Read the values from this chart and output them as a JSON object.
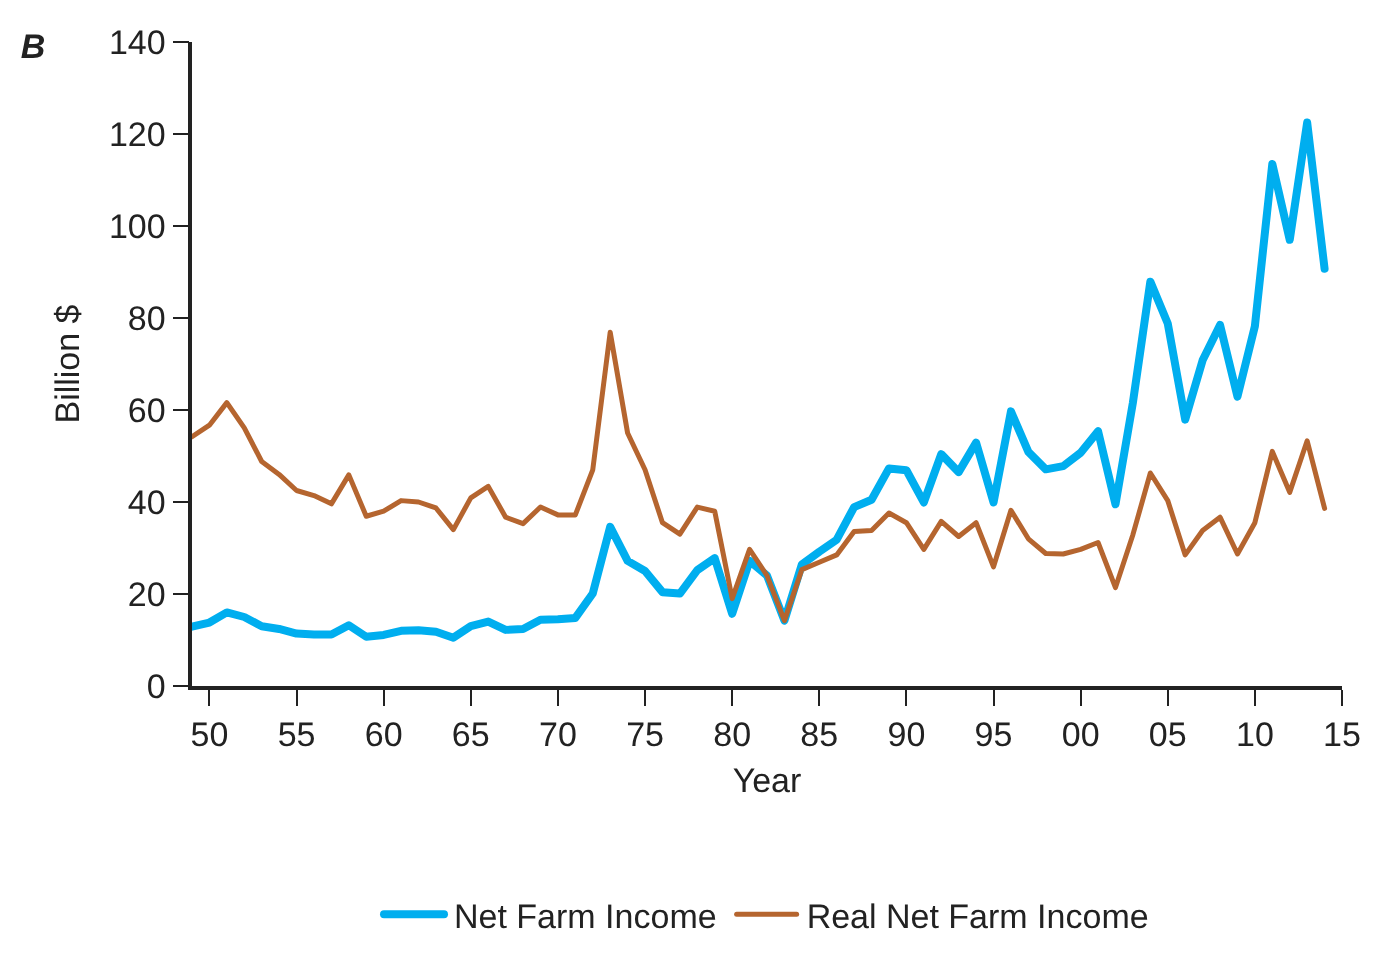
{
  "chart_data": {
    "type": "line",
    "title": "B",
    "xlabel": "Year",
    "ylabel": "Billion $",
    "x": [
      1949,
      1950,
      1951,
      1952,
      1953,
      1954,
      1955,
      1956,
      1957,
      1958,
      1959,
      1960,
      1961,
      1962,
      1963,
      1964,
      1965,
      1966,
      1967,
      1968,
      1969,
      1970,
      1971,
      1972,
      1973,
      1974,
      1975,
      1976,
      1977,
      1978,
      1979,
      1980,
      1981,
      1982,
      1983,
      1984,
      1985,
      1986,
      1987,
      1988,
      1989,
      1990,
      1991,
      1992,
      1993,
      1994,
      1995,
      1996,
      1997,
      1998,
      1999,
      2000,
      2001,
      2002,
      2003,
      2004,
      2005,
      2006,
      2007,
      2008,
      2009,
      2010,
      2011,
      2012,
      2013,
      2014
    ],
    "series": [
      {
        "name": "Net Farm Income",
        "color": "#00aeef",
        "values": [
          12.9,
          13.8,
          16.0,
          15.0,
          13.0,
          12.4,
          11.4,
          11.2,
          11.2,
          13.2,
          10.7,
          11.1,
          12.0,
          12.1,
          11.8,
          10.5,
          13.0,
          14.0,
          12.2,
          12.4,
          14.4,
          14.5,
          14.8,
          20.1,
          34.6,
          27.2,
          25.0,
          20.4,
          20.1,
          25.2,
          27.8,
          15.7,
          27.2,
          24.0,
          14.2,
          26.4,
          29.2,
          31.8,
          38.9,
          40.5,
          47.3,
          46.9,
          39.9,
          50.4,
          46.5,
          52.9,
          39.9,
          59.7,
          50.9,
          47.1,
          47.8,
          50.7,
          55.4,
          39.5,
          61.6,
          87.9,
          78.8,
          57.9,
          70.8,
          78.5,
          62.9,
          78.2,
          113.5,
          97.0,
          122.5,
          90.7
        ]
      },
      {
        "name": "Real Net Farm Income",
        "color": "#b5652f",
        "values": [
          54.2,
          56.7,
          61.6,
          56.1,
          48.8,
          46.0,
          42.5,
          41.4,
          39.6,
          45.9,
          36.9,
          38.0,
          40.3,
          40.0,
          38.7,
          34.0,
          40.9,
          43.4,
          36.7,
          35.3,
          38.9,
          37.2,
          37.2,
          47.0,
          76.9,
          55.0,
          47.0,
          35.5,
          33.0,
          38.9,
          38.0,
          19.0,
          29.7,
          24.0,
          14.2,
          25.3,
          26.9,
          28.5,
          33.6,
          33.8,
          37.6,
          35.5,
          29.7,
          35.8,
          32.5,
          35.5,
          25.9,
          38.2,
          32.0,
          28.8,
          28.7,
          29.7,
          31.2,
          21.4,
          32.9,
          46.3,
          40.3,
          28.5,
          33.8,
          36.7,
          28.7,
          35.5,
          51.0,
          42.1,
          53.3,
          38.6
        ]
      }
    ],
    "xlim": [
      1949,
      2015
    ],
    "xticks": [
      {
        "value": 1950,
        "label": "50"
      },
      {
        "value": 1955,
        "label": "55"
      },
      {
        "value": 1960,
        "label": "60"
      },
      {
        "value": 1965,
        "label": "65"
      },
      {
        "value": 1970,
        "label": "70"
      },
      {
        "value": 1975,
        "label": "75"
      },
      {
        "value": 1980,
        "label": "80"
      },
      {
        "value": 1985,
        "label": "85"
      },
      {
        "value": 1990,
        "label": "90"
      },
      {
        "value": 1995,
        "label": "95"
      },
      {
        "value": 2000,
        "label": "00"
      },
      {
        "value": 2005,
        "label": "05"
      },
      {
        "value": 2010,
        "label": "10"
      },
      {
        "value": 2015,
        "label": "15"
      }
    ],
    "ylim": [
      0,
      140
    ],
    "yticks": [
      0,
      20,
      40,
      60,
      80,
      100,
      120,
      140
    ],
    "legend": "bottom",
    "marker": "none",
    "line_style": "solid"
  }
}
